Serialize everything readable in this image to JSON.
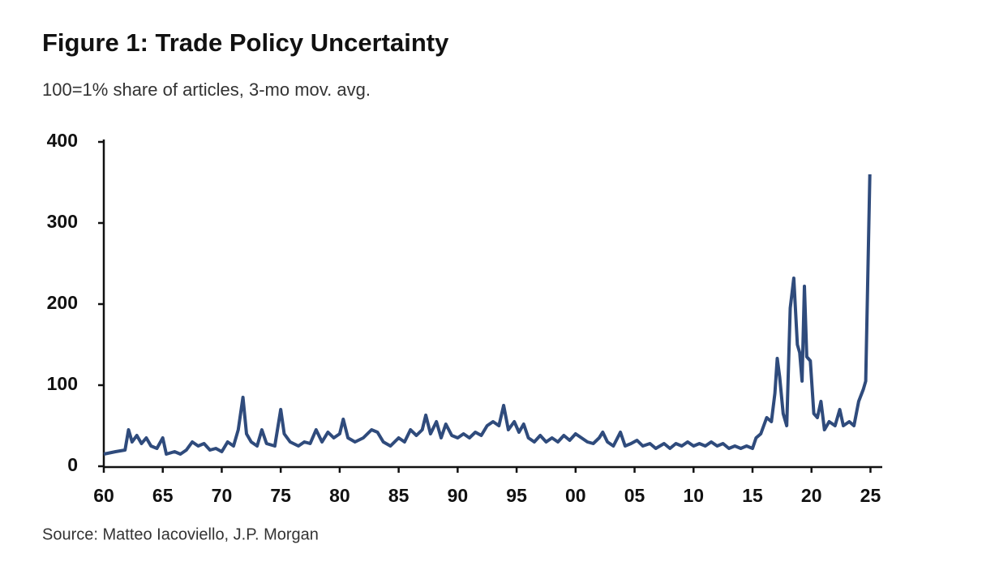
{
  "chart_data": {
    "type": "line",
    "title": "Figure 1: Trade Policy Uncertainty",
    "subtitle": "100=1% share of articles, 3-mo mov. avg.",
    "source": "Source: Matteo  Iacoviello, J.P. Morgan",
    "x": [
      1960,
      1961,
      1961.8,
      1962.1,
      1962.4,
      1962.8,
      1963.2,
      1963.6,
      1964,
      1964.5,
      1965,
      1965.3,
      1966,
      1966.5,
      1967,
      1967.5,
      1968,
      1968.5,
      1969,
      1969.5,
      1970,
      1970.5,
      1971,
      1971.4,
      1971.8,
      1972.1,
      1972.5,
      1973,
      1973.4,
      1973.8,
      1974.5,
      1975,
      1975.3,
      1975.8,
      1976.5,
      1977,
      1977.5,
      1978,
      1978.5,
      1979,
      1979.5,
      1980,
      1980.3,
      1980.7,
      1981.3,
      1982,
      1982.7,
      1983.2,
      1983.7,
      1984.3,
      1985,
      1985.5,
      1986,
      1986.5,
      1987,
      1987.3,
      1987.7,
      1988.2,
      1988.6,
      1989,
      1989.5,
      1990,
      1990.5,
      1991,
      1991.5,
      1992,
      1992.5,
      1993,
      1993.5,
      1993.9,
      1994.3,
      1994.8,
      1995.2,
      1995.6,
      1996,
      1996.5,
      1997,
      1997.5,
      1998,
      1998.5,
      1999,
      1999.5,
      2000,
      2000.5,
      2001,
      2001.5,
      2002,
      2002.3,
      2002.7,
      2003.2,
      2003.8,
      2004.2,
      2004.7,
      2005.2,
      2005.7,
      2006.3,
      2006.8,
      2007.5,
      2008,
      2008.5,
      2009,
      2009.5,
      2010,
      2010.5,
      2011,
      2011.5,
      2012,
      2012.5,
      2013,
      2013.5,
      2014,
      2014.5,
      2015,
      2015.3,
      2015.7,
      2016.2,
      2016.6,
      2016.9,
      2017.1,
      2017.3,
      2017.6,
      2017.9,
      2018.2,
      2018.5,
      2018.8,
      2019,
      2019.2,
      2019.4,
      2019.6,
      2019.9,
      2020.2,
      2020.5,
      2020.8,
      2021.1,
      2021.5,
      2022,
      2022.4,
      2022.7,
      2023.2,
      2023.6,
      2024,
      2024.4,
      2024.6,
      2024.8,
      2024.95
    ],
    "series": [
      {
        "color": "#2f4b7c",
        "values": [
          15,
          18,
          20,
          45,
          30,
          38,
          28,
          35,
          25,
          22,
          35,
          15,
          18,
          15,
          20,
          30,
          25,
          28,
          20,
          22,
          18,
          30,
          25,
          45,
          85,
          40,
          30,
          25,
          45,
          28,
          25,
          70,
          40,
          30,
          25,
          30,
          28,
          45,
          30,
          42,
          35,
          40,
          58,
          35,
          30,
          35,
          45,
          42,
          30,
          25,
          35,
          30,
          45,
          38,
          45,
          63,
          40,
          55,
          35,
          52,
          38,
          35,
          40,
          35,
          42,
          38,
          50,
          55,
          50,
          75,
          45,
          55,
          42,
          52,
          35,
          30,
          38,
          30,
          35,
          30,
          38,
          32,
          40,
          35,
          30,
          28,
          35,
          42,
          30,
          25,
          42,
          25,
          28,
          32,
          25,
          28,
          22,
          28,
          22,
          28,
          25,
          30,
          25,
          28,
          25,
          30,
          25,
          28,
          22,
          25,
          22,
          25,
          22,
          35,
          40,
          60,
          55,
          90,
          133,
          110,
          65,
          50,
          195,
          232,
          150,
          140,
          105,
          222,
          135,
          130,
          65,
          60,
          80,
          45,
          55,
          50,
          70,
          50,
          55,
          50,
          80,
          95,
          105,
          250,
          360
        ]
      }
    ],
    "xlim": [
      1960,
      2026
    ],
    "xticks": [
      {
        "value": 1960,
        "label": "60"
      },
      {
        "value": 1965,
        "label": "65"
      },
      {
        "value": 1970,
        "label": "70"
      },
      {
        "value": 1975,
        "label": "75"
      },
      {
        "value": 1980,
        "label": "80"
      },
      {
        "value": 1985,
        "label": "85"
      },
      {
        "value": 1990,
        "label": "90"
      },
      {
        "value": 1995,
        "label": "95"
      },
      {
        "value": 2000,
        "label": "00"
      },
      {
        "value": 2005,
        "label": "05"
      },
      {
        "value": 2010,
        "label": "10"
      },
      {
        "value": 2015,
        "label": "15"
      },
      {
        "value": 2020,
        "label": "20"
      },
      {
        "value": 2025,
        "label": "25"
      }
    ],
    "ylim": [
      0,
      400
    ],
    "yticks": [
      0,
      100,
      200,
      300,
      400
    ]
  }
}
